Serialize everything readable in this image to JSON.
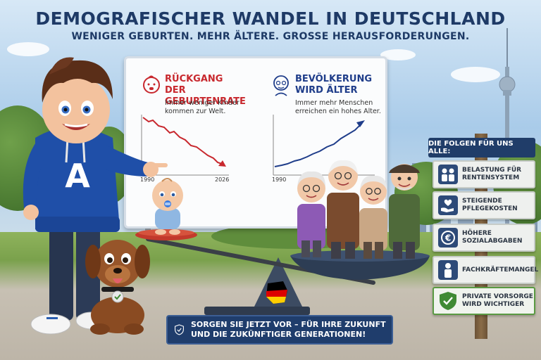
{
  "header": {
    "title": "DEMOGRAFISCHER WANDEL IN DEUTSCHLAND",
    "subtitle": "WENIGER GEBURTEN. MEHR ÄLTERE. GROSSE HERAUSFORDERUNGEN."
  },
  "board": {
    "left": {
      "heading": "Rückgang der Geburtenrate",
      "text": "Immer weniger Kinder kommen zur Welt.",
      "axis_start": "1990",
      "axis_end": "2026",
      "icon": "baby-face-icon",
      "color": "#c8282e"
    },
    "right": {
      "heading": "Bevölkerung wird älter",
      "text": "Immer mehr Menschen erreichen ein hohes Alter.",
      "axis_start": "1990",
      "icon": "elderly-face-icon",
      "color": "#1f3d8a"
    }
  },
  "mascot": {
    "shirt_letter": "A",
    "shirt_color": "#1f4fa8"
  },
  "banner": {
    "text": "SORGEN SIE JETZT VOR – FÜR IHRE ZUKUNFT UND DIE ZUKÜNFTIGER GENERATIONEN!",
    "icon": "shield-check-icon"
  },
  "consequences": {
    "title": "DIE FOLGEN FÜR UNS ALLE:",
    "items": [
      {
        "label": "Belastung für Rentensystem",
        "icon": "people-icon"
      },
      {
        "label": "Steigende Pflegekosten",
        "icon": "heart-hand-icon"
      },
      {
        "label": "Höhere Sozialabgaben",
        "icon": "euro-coin-icon"
      },
      {
        "label": "Fachkräftemangel",
        "icon": "worker-icon"
      },
      {
        "label": "Private Vorsorge wird wichtiger",
        "icon": "shield-check-icon",
        "accent": "#3f8a34"
      }
    ]
  }
}
